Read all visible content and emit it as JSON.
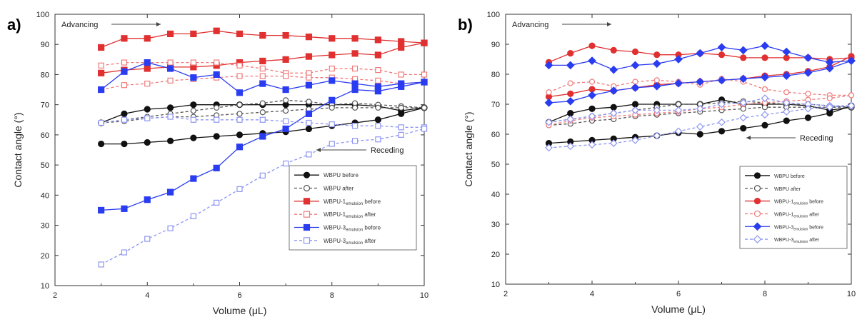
{
  "chart_data": [
    {
      "panel_label": "a)",
      "type": "line",
      "xlabel": "Volume (μL)",
      "ylabel": "Contact angle (°)",
      "xlim": [
        2,
        10
      ],
      "ylim": [
        10,
        100
      ],
      "xticks": [
        2,
        4,
        6,
        8,
        10
      ],
      "yticks": [
        10,
        20,
        30,
        40,
        50,
        60,
        70,
        80,
        90,
        100
      ],
      "legend_position": "bottom-right",
      "annotations": {
        "advancing": "Advancing",
        "receding": "Receding"
      },
      "x": [
        3,
        3.5,
        4,
        4.5,
        5,
        5.5,
        6,
        6.5,
        7,
        7.5,
        8,
        8.5,
        9,
        9.5,
        10
      ],
      "series": [
        {
          "name": "WBPU before",
          "color": "#111111",
          "marker": "circle",
          "filled": true,
          "style": "solid",
          "adv": [
            64,
            67,
            68.5,
            69,
            70,
            70,
            70,
            70,
            70,
            70,
            70,
            70,
            69.5,
            68,
            69
          ],
          "rec": [
            57,
            57,
            57.5,
            58,
            59,
            59.5,
            60,
            60.5,
            61,
            62,
            63,
            64,
            65,
            67,
            69
          ]
        },
        {
          "name": "WBPU after",
          "color": "#555555",
          "marker": "circle",
          "filled": false,
          "style": "dash",
          "adv": [
            64,
            65,
            66,
            67,
            68,
            69,
            70,
            70.5,
            71.5,
            71,
            70,
            70.5,
            70,
            69.5,
            69
          ],
          "rec": [
            64,
            64.5,
            65.5,
            66,
            66,
            66.5,
            67,
            67.5,
            68,
            68.5,
            69,
            69,
            69,
            69,
            69
          ]
        },
        {
          "name": "WBPU-1",
          "sub": "emulsion",
          "suffix": " before",
          "color": "#e03030",
          "marker": "square",
          "filled": true,
          "style": "solid",
          "adv": [
            89,
            92,
            92,
            93.5,
            93.5,
            94.5,
            93.5,
            93,
            93,
            92.5,
            92,
            92,
            91.5,
            91,
            90.5
          ],
          "rec": [
            80.5,
            81.5,
            82,
            82.5,
            82.5,
            83,
            84,
            84.5,
            85,
            86,
            86.5,
            87,
            86.5,
            89,
            90.5
          ]
        },
        {
          "name": "WBPU-1",
          "sub": "emulsion",
          "suffix": " after",
          "color": "#f07a7a",
          "marker": "square",
          "filled": false,
          "style": "dash",
          "adv": [
            83,
            84,
            84,
            84,
            84,
            84,
            83,
            82,
            80.5,
            80.5,
            82,
            82,
            81.5,
            80,
            80
          ],
          "rec": [
            75,
            76.5,
            77,
            78,
            78.5,
            79,
            79.5,
            79.5,
            79.5,
            79,
            79,
            78.5,
            78,
            77,
            77.5
          ]
        },
        {
          "name": "WBPU-3",
          "sub": "emulsion",
          "suffix": " before",
          "color": "#2a3cf0",
          "marker": "square",
          "filled": true,
          "style": "solid",
          "adv": [
            75,
            81,
            84,
            82,
            79,
            80,
            74,
            77,
            75,
            76.5,
            78,
            77,
            76,
            77,
            77.5
          ],
          "rec": [
            35,
            35.5,
            38.5,
            41,
            45.5,
            49,
            56,
            59.5,
            62,
            67,
            71.5,
            75,
            74.5,
            76,
            77.5
          ]
        },
        {
          "name": "WBPU-3",
          "sub": "emulsion",
          "suffix": " after",
          "color": "#8e96f3",
          "marker": "square",
          "filled": false,
          "style": "dash",
          "adv": [
            64,
            65,
            65.5,
            66,
            65,
            65,
            65,
            65,
            64.5,
            64,
            63.5,
            63,
            63,
            62.5,
            62.5
          ],
          "rec": [
            17,
            21,
            25.5,
            29,
            33,
            37.5,
            42,
            46.5,
            50.5,
            53.5,
            57,
            58,
            58.5,
            60,
            62
          ]
        }
      ]
    },
    {
      "panel_label": "b)",
      "type": "line",
      "xlabel": "Volume (μL)",
      "ylabel": "Contact angle (°)",
      "xlim": [
        2,
        10
      ],
      "ylim": [
        10,
        100
      ],
      "xticks": [
        2,
        4,
        6,
        8,
        10
      ],
      "yticks": [
        10,
        20,
        30,
        40,
        50,
        60,
        70,
        80,
        90,
        100
      ],
      "legend_position": "bottom-right",
      "annotations": {
        "advancing": "Advancing",
        "receding": "Receding"
      },
      "x": [
        3,
        3.5,
        4,
        4.5,
        5,
        5.5,
        6,
        6.5,
        7,
        7.5,
        8,
        8.5,
        9,
        9.5,
        10
      ],
      "series": [
        {
          "name": "WBPU before",
          "color": "#111111",
          "marker": "circle",
          "filled": true,
          "style": "solid",
          "adv": [
            64,
            67,
            68.5,
            69,
            70,
            70,
            70,
            70,
            71.5,
            70,
            70,
            70,
            69.5,
            68,
            69
          ],
          "rec": [
            57,
            57.5,
            58,
            58.5,
            59,
            59.5,
            60.5,
            60,
            61,
            62,
            63,
            64.5,
            65.5,
            67,
            69.5
          ]
        },
        {
          "name": "WBPU after",
          "color": "#555555",
          "marker": "circle",
          "filled": false,
          "style": "dash",
          "adv": [
            64,
            65,
            66,
            67,
            68,
            69,
            70,
            70,
            70.5,
            71,
            70.5,
            70,
            70,
            69.5,
            69
          ],
          "rec": [
            63,
            63.5,
            64.5,
            65,
            66,
            66.5,
            67,
            67.5,
            68,
            68.5,
            69,
            69,
            69,
            69,
            69
          ]
        },
        {
          "name": "WBPU-1",
          "sub": "emulsion",
          "suffix": " before",
          "color": "#e03030",
          "marker": "circle",
          "filled": true,
          "style": "solid",
          "adv": [
            84,
            87,
            89.5,
            88,
            87.5,
            86.5,
            86.5,
            87,
            86.5,
            85.5,
            85.5,
            85.5,
            85.5,
            85,
            85.5
          ],
          "rec": [
            72.5,
            73.5,
            75,
            74.5,
            75.5,
            76.5,
            77,
            77.5,
            78,
            78.5,
            79.5,
            80,
            81,
            82.5,
            86
          ]
        },
        {
          "name": "WBPU-1",
          "sub": "emulsion",
          "suffix": " after",
          "color": "#f07a7a",
          "marker": "circle",
          "filled": false,
          "style": "dash",
          "adv": [
            74,
            77,
            77.5,
            76,
            77.5,
            78,
            77.5,
            76.5,
            78.5,
            77.5,
            75,
            74,
            73.5,
            73,
            73
          ],
          "rec": [
            63,
            64.5,
            65.5,
            66,
            66.5,
            67,
            67.5,
            68.5,
            69,
            70,
            70.5,
            71,
            71.5,
            72,
            73
          ]
        },
        {
          "name": "WBPU-3",
          "sub": "emulsion",
          "suffix": " before",
          "color": "#2a3cf0",
          "marker": "diamond",
          "filled": true,
          "style": "solid",
          "adv": [
            83,
            83,
            84.5,
            81.5,
            83,
            83.5,
            85,
            87,
            89,
            88,
            89.5,
            87.5,
            85.5,
            84,
            84.5
          ],
          "rec": [
            70.5,
            71,
            73,
            74.5,
            75.5,
            76,
            77,
            77.5,
            78,
            78.5,
            79,
            79.5,
            80.5,
            82,
            84.5
          ]
        },
        {
          "name": "WBPU-3",
          "sub": "emulsion",
          "suffix": " after",
          "color": "#8e96f3",
          "marker": "diamond",
          "filled": false,
          "style": "dash",
          "adv": [
            64,
            65,
            66,
            67,
            68,
            68,
            68,
            68.5,
            70,
            70.5,
            72,
            70.5,
            70,
            69.5,
            69.5
          ],
          "rec": [
            55.5,
            56,
            56.5,
            57,
            58,
            59.5,
            61,
            62.5,
            64,
            65.5,
            66.5,
            67.5,
            68.5,
            69,
            69.5
          ]
        }
      ]
    }
  ]
}
